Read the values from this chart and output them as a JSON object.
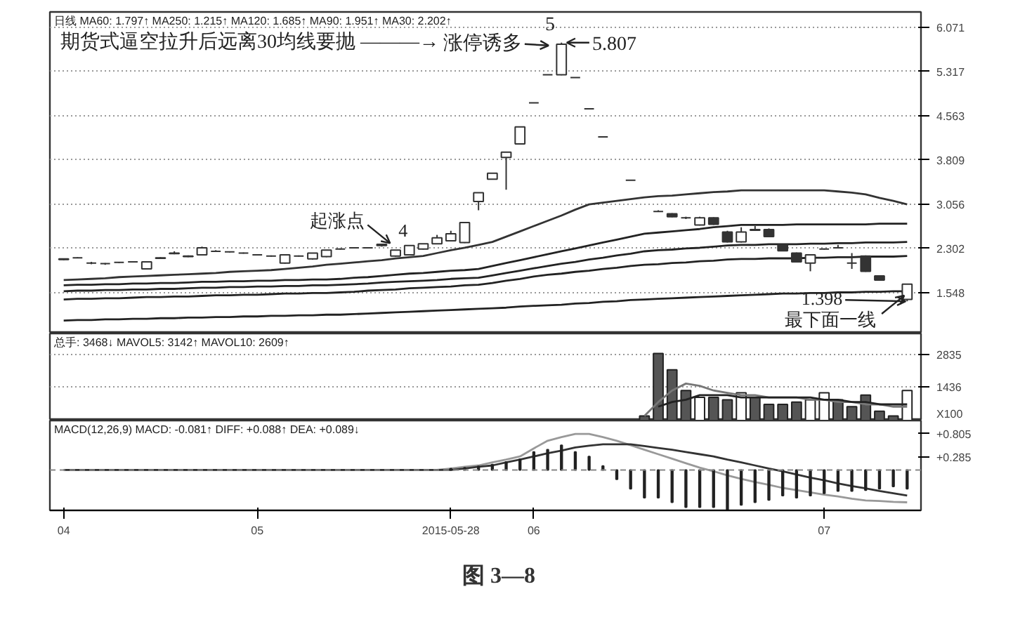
{
  "chart_data": [
    {
      "type": "candlestick",
      "color": "#333333",
      "ylim": [
        0.85,
        6.33
      ],
      "yticks": [
        1.548,
        2.302,
        3.056,
        3.809,
        4.563,
        5.317,
        6.071
      ],
      "grid": "y",
      "tick_labels": "y",
      "categories": [
        "04",
        null,
        null,
        null,
        null,
        null,
        null,
        null,
        null,
        null,
        null,
        null,
        null,
        null,
        "05",
        null,
        null,
        null,
        null,
        null,
        null,
        null,
        null,
        null,
        null,
        null,
        null,
        null,
        "2015-05-28",
        null,
        null,
        null,
        null,
        null,
        "06",
        null,
        null,
        null,
        null,
        null,
        null,
        null,
        null,
        null,
        null,
        null,
        null,
        null,
        null,
        null,
        null,
        null,
        null,
        null,
        null,
        "07",
        null,
        null,
        null,
        null,
        null,
        null
      ],
      "ohlc": [
        [
          2.11,
          2.13,
          2.1,
          2.12
        ],
        [
          2.14,
          2.15,
          2.13,
          2.14
        ],
        [
          2.05,
          2.07,
          2.03,
          2.05
        ],
        [
          2.04,
          2.05,
          2.02,
          2.04
        ],
        [
          2.06,
          2.07,
          2.05,
          2.06
        ],
        [
          2.07,
          2.08,
          2.06,
          2.07
        ],
        [
          1.95,
          2.08,
          1.94,
          2.07
        ],
        [
          2.13,
          2.15,
          2.12,
          2.14
        ],
        [
          2.21,
          2.25,
          2.2,
          2.22
        ],
        [
          2.16,
          2.18,
          2.15,
          2.17
        ],
        [
          2.19,
          2.33,
          2.18,
          2.31
        ],
        [
          2.25,
          2.27,
          2.24,
          2.25
        ],
        [
          2.24,
          2.25,
          2.23,
          2.24
        ],
        [
          2.22,
          2.23,
          2.21,
          2.22
        ],
        [
          2.19,
          2.2,
          2.18,
          2.19
        ],
        [
          2.17,
          2.18,
          2.16,
          2.17
        ],
        [
          2.05,
          2.2,
          2.04,
          2.19
        ],
        [
          2.17,
          2.18,
          2.16,
          2.17
        ],
        [
          2.12,
          2.22,
          2.11,
          2.22
        ],
        [
          2.16,
          2.27,
          2.15,
          2.27
        ],
        [
          2.29,
          2.3,
          2.28,
          2.29
        ],
        [
          2.31,
          2.32,
          2.3,
          2.31
        ],
        [
          2.31,
          2.32,
          2.3,
          2.31
        ],
        [
          2.37,
          2.38,
          2.33,
          2.35
        ],
        [
          2.17,
          2.27,
          2.16,
          2.27
        ],
        [
          2.19,
          2.35,
          2.18,
          2.35
        ],
        [
          2.29,
          2.38,
          2.28,
          2.38
        ],
        [
          2.38,
          2.53,
          2.37,
          2.48
        ],
        [
          2.43,
          2.6,
          2.42,
          2.55
        ],
        [
          2.4,
          2.74,
          2.39,
          2.74
        ],
        [
          3.1,
          3.25,
          2.95,
          3.25
        ],
        [
          3.48,
          3.58,
          3.47,
          3.58
        ],
        [
          3.85,
          3.94,
          3.3,
          3.94
        ],
        [
          4.08,
          4.37,
          4.07,
          4.37
        ],
        [
          4.78,
          4.78,
          4.78,
          4.78
        ],
        [
          5.26,
          5.26,
          5.26,
          5.26
        ],
        [
          5.26,
          5.807,
          5.25,
          5.78
        ],
        [
          5.21,
          5.21,
          5.21,
          5.21
        ],
        [
          4.68,
          4.68,
          4.68,
          4.68
        ],
        [
          4.2,
          4.2,
          4.2,
          4.2
        ],
        null,
        [
          3.46,
          3.46,
          3.46,
          3.46
        ],
        null,
        [
          2.93,
          2.95,
          2.92,
          2.93
        ],
        [
          2.89,
          2.9,
          2.83,
          2.84
        ],
        [
          2.82,
          2.84,
          2.8,
          2.82
        ],
        [
          2.7,
          2.84,
          2.69,
          2.82
        ],
        [
          2.82,
          2.83,
          2.7,
          2.71
        ],
        [
          2.58,
          2.6,
          2.4,
          2.41
        ],
        [
          2.41,
          2.66,
          2.4,
          2.58
        ],
        [
          2.61,
          2.68,
          2.6,
          2.62
        ],
        [
          2.62,
          2.64,
          2.49,
          2.5
        ],
        [
          2.36,
          2.37,
          2.25,
          2.26
        ],
        [
          2.22,
          2.23,
          2.06,
          2.07
        ],
        [
          2.05,
          2.2,
          1.91,
          2.19
        ],
        [
          2.29,
          2.3,
          2.28,
          2.29
        ],
        [
          2.31,
          2.36,
          2.3,
          2.31
        ],
        [
          2.05,
          2.22,
          1.95,
          2.05
        ],
        [
          2.17,
          2.18,
          1.9,
          1.91
        ],
        [
          1.83,
          1.84,
          1.75,
          1.76
        ],
        null,
        [
          1.43,
          1.69,
          1.398,
          1.69
        ]
      ],
      "series": [
        {
          "type": "line",
          "color": "#333333",
          "values": [
            1.76,
            1.77,
            1.78,
            1.79,
            1.81,
            1.82,
            1.83,
            1.84,
            1.85,
            1.86,
            1.87,
            1.88,
            1.9,
            1.91,
            1.92,
            1.93,
            1.95,
            1.97,
            1.99,
            2.02,
            2.04,
            2.06,
            2.08,
            2.1,
            2.13,
            2.15,
            2.17,
            2.22,
            2.27,
            2.31,
            2.36,
            2.41,
            2.5,
            2.59,
            2.68,
            2.77,
            2.86,
            2.96,
            3.05,
            3.08,
            3.11,
            3.14,
            3.17,
            3.19,
            3.2,
            3.22,
            3.24,
            3.26,
            3.27,
            3.29,
            3.29,
            3.29,
            3.29,
            3.29,
            3.29,
            3.29,
            3.27,
            3.25,
            3.22,
            3.16,
            3.11,
            3.05
          ]
        },
        {
          "type": "line",
          "color": "#222222",
          "values": [
            1.67,
            1.68,
            1.68,
            1.69,
            1.69,
            1.7,
            1.7,
            1.71,
            1.71,
            1.72,
            1.73,
            1.73,
            1.74,
            1.74,
            1.75,
            1.75,
            1.76,
            1.76,
            1.77,
            1.77,
            1.78,
            1.8,
            1.81,
            1.83,
            1.85,
            1.87,
            1.88,
            1.9,
            1.92,
            1.93,
            1.95,
            2.0,
            2.05,
            2.1,
            2.15,
            2.2,
            2.25,
            2.3,
            2.35,
            2.4,
            2.45,
            2.5,
            2.55,
            2.57,
            2.59,
            2.61,
            2.63,
            2.66,
            2.68,
            2.7,
            2.7,
            2.7,
            2.7,
            2.71,
            2.71,
            2.71,
            2.71,
            2.71,
            2.71,
            2.72,
            2.72,
            2.72
          ]
        },
        {
          "type": "line",
          "color": "#222222",
          "values": [
            1.57,
            1.58,
            1.58,
            1.59,
            1.59,
            1.6,
            1.6,
            1.61,
            1.61,
            1.62,
            1.63,
            1.63,
            1.64,
            1.64,
            1.65,
            1.65,
            1.66,
            1.66,
            1.67,
            1.67,
            1.68,
            1.69,
            1.7,
            1.72,
            1.73,
            1.74,
            1.75,
            1.76,
            1.78,
            1.79,
            1.8,
            1.84,
            1.88,
            1.92,
            1.96,
            2.0,
            2.04,
            2.07,
            2.11,
            2.14,
            2.18,
            2.21,
            2.25,
            2.27,
            2.28,
            2.3,
            2.31,
            2.33,
            2.35,
            2.36,
            2.36,
            2.37,
            2.37,
            2.37,
            2.38,
            2.38,
            2.39,
            2.39,
            2.4,
            2.4,
            2.4,
            2.41
          ]
        },
        {
          "type": "line",
          "color": "#222222",
          "values": [
            1.43,
            1.44,
            1.44,
            1.45,
            1.45,
            1.46,
            1.47,
            1.47,
            1.48,
            1.48,
            1.49,
            1.5,
            1.5,
            1.51,
            1.51,
            1.52,
            1.53,
            1.53,
            1.54,
            1.54,
            1.55,
            1.56,
            1.58,
            1.59,
            1.6,
            1.62,
            1.63,
            1.64,
            1.65,
            1.67,
            1.68,
            1.71,
            1.75,
            1.78,
            1.82,
            1.85,
            1.87,
            1.9,
            1.92,
            1.95,
            1.97,
            2.0,
            2.02,
            2.03,
            2.05,
            2.06,
            2.08,
            2.09,
            2.11,
            2.12,
            2.12,
            2.13,
            2.13,
            2.13,
            2.14,
            2.14,
            2.15,
            2.15,
            2.16,
            2.16,
            2.16,
            2.17
          ]
        },
        {
          "type": "line",
          "color": "#222222",
          "values": [
            1.07,
            1.08,
            1.08,
            1.09,
            1.09,
            1.1,
            1.1,
            1.11,
            1.11,
            1.12,
            1.12,
            1.13,
            1.13,
            1.14,
            1.14,
            1.15,
            1.15,
            1.16,
            1.16,
            1.17,
            1.17,
            1.18,
            1.19,
            1.2,
            1.21,
            1.22,
            1.23,
            1.24,
            1.25,
            1.26,
            1.27,
            1.28,
            1.29,
            1.31,
            1.32,
            1.33,
            1.34,
            1.36,
            1.37,
            1.39,
            1.4,
            1.42,
            1.43,
            1.44,
            1.45,
            1.46,
            1.47,
            1.48,
            1.49,
            1.5,
            1.51,
            1.52,
            1.53,
            1.53,
            1.54,
            1.54,
            1.55,
            1.55,
            1.56,
            1.56,
            1.57,
            1.57
          ]
        }
      ],
      "annotations": [
        "日线  MA60: 1.797↑  MA250: 1.215↑  MA120: 1.685↑  MA90: 1.951↑  MA30: 2.202↑",
        "期货式逼空拉升后远离30均线要抛 ———→",
        "涨停诱多",
        "5",
        "5.807",
        "起涨点",
        "4",
        "1.398",
        "最下面一线"
      ]
    },
    {
      "type": "bar",
      "ylim": [
        0,
        3770
      ],
      "yticks": [
        {
          "value": 0,
          "label": "X100"
        },
        1436,
        2835
      ],
      "grid": "y",
      "tick_labels": "y",
      "categories": [
        "04",
        null,
        null,
        null,
        null,
        null,
        null,
        null,
        null,
        null,
        null,
        null,
        null,
        null,
        "05",
        null,
        null,
        null,
        null,
        null,
        null,
        null,
        null,
        null,
        null,
        null,
        null,
        null,
        "2015-05-28",
        null,
        null,
        null,
        null,
        null,
        "06",
        null,
        null,
        null,
        null,
        null,
        null,
        null,
        null,
        null,
        null,
        null,
        null,
        null,
        null,
        null,
        null,
        null,
        null,
        null,
        null,
        "07",
        null,
        null,
        null,
        null,
        null,
        null
      ],
      "series": [
        {
          "values": [
            null,
            null,
            null,
            null,
            null,
            null,
            null,
            null,
            null,
            null,
            null,
            null,
            null,
            null,
            null,
            null,
            null,
            null,
            null,
            null,
            null,
            null,
            null,
            null,
            null,
            null,
            null,
            null,
            null,
            null,
            null,
            null,
            null,
            null,
            null,
            null,
            null,
            null,
            null,
            null,
            null,
            null,
            200,
            2900,
            2200,
            1300,
            1000,
            1000,
            900,
            1200,
            1000,
            700,
            700,
            800,
            900,
            1200,
            900,
            600,
            1100,
            400,
            200,
            1300
          ],
          "colors": [
            null,
            null,
            null,
            null,
            null,
            null,
            null,
            null,
            null,
            null,
            null,
            null,
            null,
            null,
            null,
            null,
            null,
            null,
            null,
            null,
            null,
            null,
            null,
            null,
            null,
            null,
            null,
            null,
            null,
            null,
            null,
            null,
            null,
            null,
            null,
            null,
            null,
            null,
            null,
            null,
            null,
            null,
            "#555555",
            "#555555",
            "#555555",
            "#555555",
            "#ffffff",
            "#555555",
            "#555555",
            "#ffffff",
            "#555555",
            "#555555",
            "#555555",
            "#555555",
            "#ffffff",
            "#ffffff",
            "#555555",
            "#555555",
            "#555555",
            "#555555",
            "#555555",
            "#ffffff"
          ]
        },
        {
          "type": "line",
          "color": "#777777",
          "values": [
            null,
            null,
            null,
            null,
            null,
            null,
            null,
            null,
            null,
            null,
            null,
            null,
            null,
            null,
            null,
            null,
            null,
            null,
            null,
            null,
            null,
            null,
            null,
            null,
            null,
            null,
            null,
            null,
            null,
            null,
            null,
            null,
            null,
            null,
            null,
            null,
            null,
            null,
            null,
            null,
            null,
            null,
            200,
            800,
            1300,
            1600,
            1500,
            1300,
            1200,
            1100,
            1100,
            1000,
            1000,
            1000,
            900,
            900,
            800,
            800,
            700,
            700,
            600,
            600
          ]
        },
        {
          "type": "line",
          "color": "#222222",
          "values": [
            null,
            null,
            null,
            null,
            null,
            null,
            null,
            null,
            null,
            null,
            null,
            null,
            null,
            null,
            null,
            null,
            null,
            null,
            null,
            null,
            null,
            null,
            null,
            null,
            null,
            null,
            null,
            null,
            null,
            null,
            null,
            null,
            null,
            null,
            null,
            null,
            null,
            null,
            null,
            null,
            null,
            null,
            null,
            600,
            800,
            900,
            1100,
            1100,
            1100,
            1000,
            1000,
            1000,
            1000,
            1000,
            1000,
            900,
            900,
            800,
            800,
            700,
            700,
            700
          ]
        }
      ],
      "annotations": [
        "总手: 3468↓  MAVOL5: 3142↑  MAVOL10: 2609↑"
      ]
    },
    {
      "type": "bar",
      "ylim": [
        -0.9,
        1.1
      ],
      "yticks": [
        {
          "value": 0.805,
          "label": "+0.805"
        },
        {
          "value": 0.285,
          "label": "+0.285"
        }
      ],
      "categories": [
        "04",
        null,
        null,
        null,
        null,
        null,
        null,
        null,
        null,
        null,
        null,
        null,
        null,
        null,
        "05",
        null,
        null,
        null,
        null,
        null,
        null,
        null,
        null,
        null,
        null,
        null,
        null,
        null,
        "2015-05-28",
        null,
        null,
        null,
        null,
        null,
        "06",
        null,
        null,
        null,
        null,
        null,
        null,
        null,
        null,
        null,
        null,
        null,
        null,
        null,
        null,
        null,
        null,
        null,
        null,
        null,
        null,
        "07",
        null,
        null,
        null,
        null,
        null,
        null
      ],
      "ref_lines": [
        {
          "axis": "y",
          "value": 0,
          "line_style": "dashed",
          "color": "#888888"
        }
      ],
      "series": [
        {
          "color": "#222222",
          "values": [
            null,
            null,
            null,
            null,
            null,
            null,
            null,
            null,
            null,
            null,
            null,
            null,
            null,
            null,
            null,
            null,
            null,
            null,
            null,
            null,
            null,
            null,
            null,
            null,
            null,
            null,
            null,
            null,
            0.03,
            0.05,
            0.08,
            0.12,
            0.18,
            0.24,
            0.4,
            0.45,
            0.55,
            0.4,
            0.3,
            0.09,
            -0.21,
            -0.42,
            -0.62,
            -0.62,
            -0.72,
            -0.83,
            -0.83,
            -0.83,
            -0.88,
            -0.78,
            -0.72,
            -0.67,
            -0.57,
            -0.62,
            -0.57,
            -0.52,
            -0.47,
            -0.47,
            -0.45,
            -0.42,
            -0.37,
            -0.42
          ]
        },
        {
          "type": "line",
          "color": "#999999",
          "values": [
            0,
            0,
            0,
            0,
            0,
            0,
            0,
            0,
            0,
            0,
            0,
            0,
            0,
            0,
            0,
            0,
            0,
            0,
            0,
            0,
            0,
            0,
            0,
            0,
            0,
            0,
            0,
            0,
            0.03,
            0.07,
            0.1,
            0.17,
            0.23,
            0.3,
            0.48,
            0.65,
            0.73,
            0.8,
            0.8,
            0.73,
            0.65,
            0.55,
            0.45,
            0.35,
            0.25,
            0.15,
            0.05,
            -0.03,
            -0.12,
            -0.2,
            -0.27,
            -0.33,
            -0.4,
            -0.45,
            -0.5,
            -0.55,
            -0.59,
            -0.64,
            -0.68,
            -0.69,
            -0.71,
            -0.72
          ]
        },
        {
          "type": "line",
          "color": "#333333",
          "values": [
            0,
            0,
            0,
            0,
            0,
            0,
            0,
            0,
            0,
            0,
            0,
            0,
            0,
            0,
            0,
            0,
            0,
            0,
            0,
            0,
            0,
            0,
            0,
            0,
            0,
            0,
            0,
            0,
            0,
            0.03,
            0.07,
            0.1,
            0.17,
            0.23,
            0.3,
            0.37,
            0.43,
            0.5,
            0.54,
            0.57,
            0.57,
            0.57,
            0.53,
            0.49,
            0.45,
            0.4,
            0.35,
            0.3,
            0.23,
            0.17,
            0.1,
            0.03,
            -0.03,
            -0.1,
            -0.17,
            -0.23,
            -0.3,
            -0.36,
            -0.41,
            -0.47,
            -0.52,
            -0.57
          ]
        }
      ],
      "annotations": [
        "MACD(12,26,9)  MACD: -0.081↑  DIFF: +0.088↑  DEA: +0.089↓",
        "图 3—8"
      ]
    }
  ]
}
